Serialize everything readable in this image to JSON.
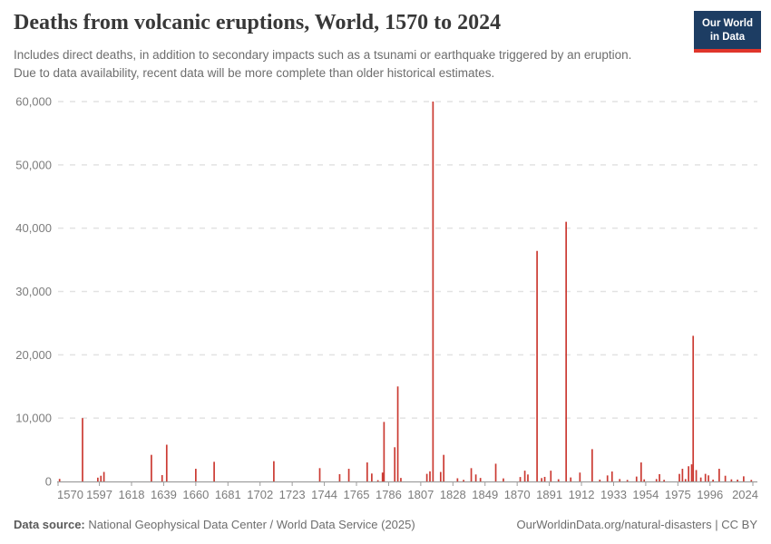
{
  "header": {
    "title": "Deaths from volcanic eruptions, World, 1570 to 2024",
    "subtitle": "Includes direct deaths, in addition to secondary impacts such as a tsunami or earthquake triggered by an eruption. Due to data availability, recent data will be more complete than older historical estimates.",
    "logo": {
      "line1": "Our World",
      "line2": "in Data",
      "bg_color": "#1d3d63",
      "accent_color": "#e0352b"
    }
  },
  "chart_data": {
    "type": "bar",
    "title": "Deaths from volcanic eruptions, World, 1570 to 2024",
    "series_name": "World",
    "xlabel": "",
    "ylabel": "",
    "xlim": [
      1570,
      2024
    ],
    "ylim": [
      0,
      60000
    ],
    "x_ticks": [
      1570,
      1597,
      1618,
      1639,
      1660,
      1681,
      1702,
      1723,
      1744,
      1765,
      1786,
      1807,
      1828,
      1849,
      1870,
      1891,
      1912,
      1933,
      1954,
      1975,
      1996,
      2024
    ],
    "y_ticks": [
      0,
      10000,
      20000,
      30000,
      40000,
      50000,
      60000
    ],
    "grid": "horizontal-dashed",
    "legend": "none",
    "bar_color": "#cb3a32",
    "grid_color": "#e2e2e2",
    "axis_color": "#9e9e9e",
    "axis_label_color": "#7c7c7c",
    "points": [
      [
        1571,
        400
      ],
      [
        1586,
        10000
      ],
      [
        1596,
        600
      ],
      [
        1598,
        900
      ],
      [
        1600,
        1500
      ],
      [
        1631,
        4200
      ],
      [
        1638,
        1000
      ],
      [
        1641,
        5800
      ],
      [
        1660,
        2000
      ],
      [
        1672,
        3100
      ],
      [
        1711,
        3200
      ],
      [
        1741,
        2100
      ],
      [
        1754,
        1150
      ],
      [
        1760,
        2000
      ],
      [
        1772,
        3000
      ],
      [
        1775,
        1250
      ],
      [
        1779,
        200
      ],
      [
        1782,
        1400
      ],
      [
        1783,
        9400
      ],
      [
        1790,
        5400
      ],
      [
        1792,
        15000
      ],
      [
        1794,
        550
      ],
      [
        1811,
        1200
      ],
      [
        1813,
        1600
      ],
      [
        1815,
        60000
      ],
      [
        1820,
        1500
      ],
      [
        1822,
        4200
      ],
      [
        1831,
        500
      ],
      [
        1835,
        250
      ],
      [
        1840,
        2100
      ],
      [
        1843,
        1100
      ],
      [
        1846,
        550
      ],
      [
        1856,
        2800
      ],
      [
        1861,
        480
      ],
      [
        1872,
        700
      ],
      [
        1875,
        1700
      ],
      [
        1877,
        1100
      ],
      [
        1883,
        36400
      ],
      [
        1886,
        530
      ],
      [
        1888,
        720
      ],
      [
        1892,
        1700
      ],
      [
        1897,
        350
      ],
      [
        1902,
        41000
      ],
      [
        1905,
        630
      ],
      [
        1911,
        1400
      ],
      [
        1919,
        5100
      ],
      [
        1924,
        290
      ],
      [
        1929,
        950
      ],
      [
        1932,
        1570
      ],
      [
        1937,
        380
      ],
      [
        1942,
        240
      ],
      [
        1948,
        770
      ],
      [
        1951,
        3000
      ],
      [
        1953,
        330
      ],
      [
        1961,
        380
      ],
      [
        1963,
        1150
      ],
      [
        1966,
        250
      ],
      [
        1976,
        1190
      ],
      [
        1978,
        2000
      ],
      [
        1980,
        380
      ],
      [
        1982,
        2400
      ],
      [
        1984,
        2700
      ],
      [
        1985,
        23000
      ],
      [
        1987,
        1800
      ],
      [
        1990,
        620
      ],
      [
        1993,
        1200
      ],
      [
        1995,
        960
      ],
      [
        1998,
        290
      ],
      [
        2002,
        2000
      ],
      [
        2006,
        900
      ],
      [
        2010,
        330
      ],
      [
        2014,
        290
      ],
      [
        2018,
        810
      ],
      [
        2023,
        240
      ]
    ]
  },
  "footer": {
    "datasource_label": "Data source:",
    "datasource": "National Geophysical Data Center / World Data Service (2025)",
    "link": "OurWorldinData.org/natural-disasters",
    "separator": "|",
    "license": "CC BY"
  }
}
